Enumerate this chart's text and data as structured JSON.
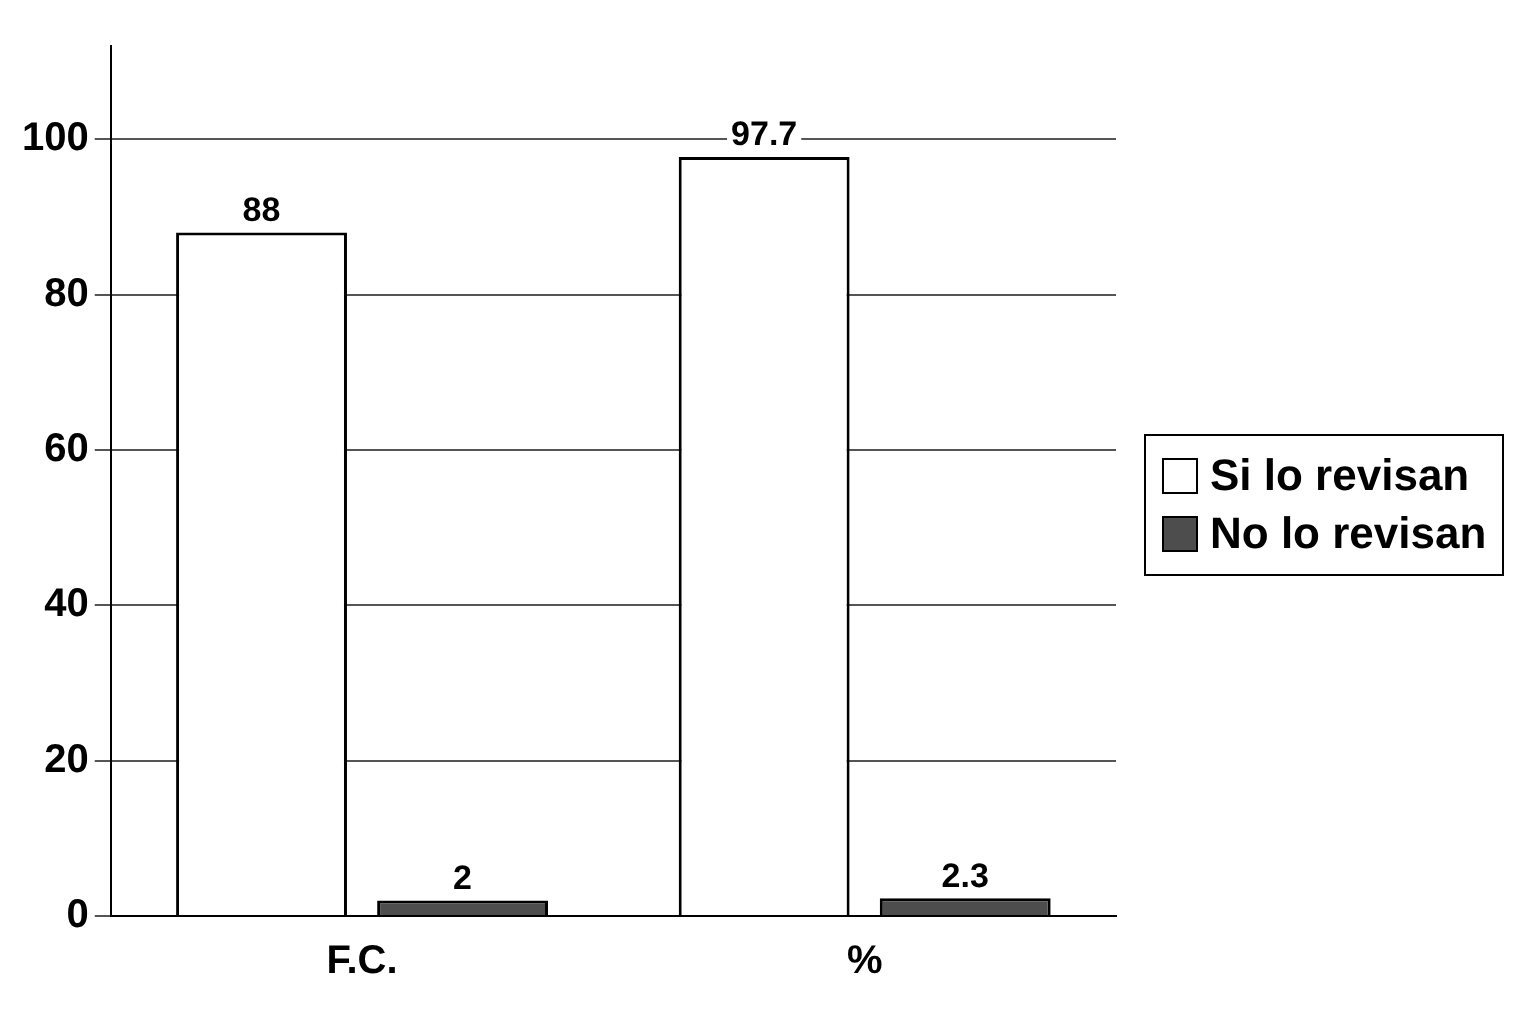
{
  "chart_data": {
    "type": "bar",
    "categories": [
      "F.C.",
      "%"
    ],
    "series": [
      {
        "name": "Si lo revisan",
        "color": "#ffffff",
        "values": [
          88,
          97.7
        ]
      },
      {
        "name": "No lo revisan",
        "color": "#4d4d4d",
        "values": [
          2,
          2.3
        ]
      }
    ],
    "ylim": [
      0,
      112
    ],
    "yticks": [
      0,
      20,
      40,
      60,
      80,
      100
    ],
    "grid": "y",
    "legend": "right",
    "data_labels": true
  }
}
